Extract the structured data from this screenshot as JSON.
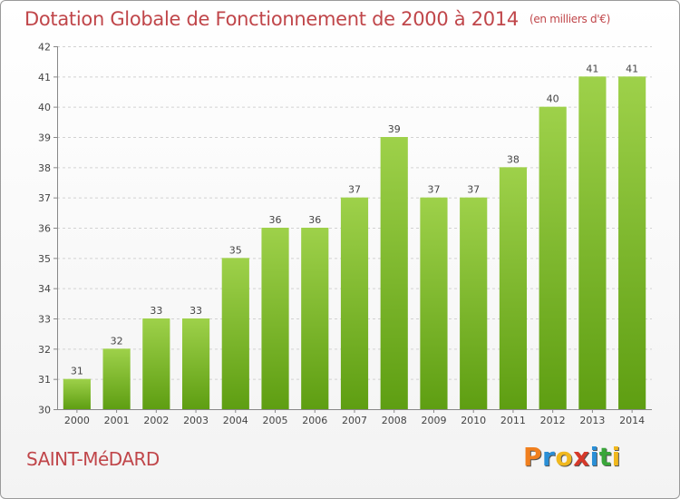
{
  "title": "Dotation Globale de Fonctionnement de 2000 à 2014",
  "unit_note": "(en milliers d'€)",
  "place_name": "SAINT-MéDARD",
  "logo": {
    "letters": [
      "P",
      "r",
      "o",
      "x",
      "i",
      "t",
      "i"
    ],
    "colors": [
      "#f07f1e",
      "#2a8fd6",
      "#f0b81e",
      "#d6392a",
      "#2a8fd6",
      "#3aa63a",
      "#f0b81e"
    ]
  },
  "chart_data": {
    "type": "bar",
    "title": "Dotation Globale de Fonctionnement de 2000 à 2014",
    "categories": [
      "2000",
      "2001",
      "2002",
      "2003",
      "2004",
      "2005",
      "2006",
      "2007",
      "2008",
      "2009",
      "2010",
      "2011",
      "2012",
      "2013",
      "2014"
    ],
    "values": [
      31,
      32,
      33,
      33,
      35,
      36,
      36,
      37,
      39,
      37,
      37,
      38,
      40,
      41,
      41
    ],
    "ylim": [
      30,
      42
    ],
    "yticks": [
      30,
      31,
      32,
      33,
      34,
      35,
      36,
      37,
      38,
      39,
      40,
      41,
      42
    ],
    "grid": true,
    "bar_color": "#7fbf2a"
  }
}
